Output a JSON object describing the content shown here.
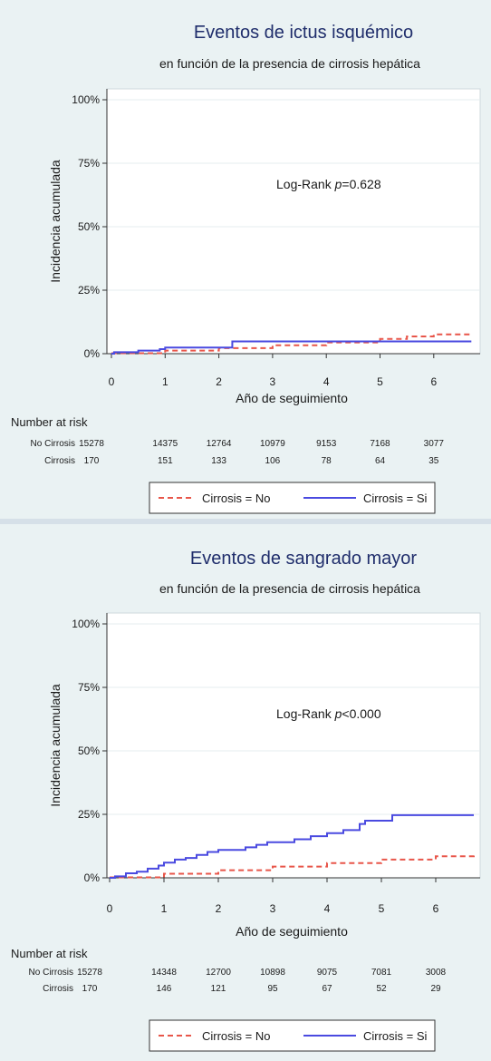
{
  "chart_data": [
    {
      "type": "line",
      "title": "Eventos de ictus isquémico",
      "subtitle": "en función de la presencia de cirrosis hepática",
      "xlabel": "Año de seguimiento",
      "ylabel": "Incidencia acumulada",
      "xlim": [
        0,
        6.8
      ],
      "ylim": [
        0,
        1
      ],
      "x_ticks": [
        "0",
        "1",
        "2",
        "3",
        "4",
        "5",
        "6"
      ],
      "y_ticks": [
        "0%",
        "25%",
        "50%",
        "75%",
        "100%"
      ],
      "grid": true,
      "annotation": {
        "prefix": "Log-Rank ",
        "p": "p",
        "rest": "=0.628"
      },
      "series": [
        {
          "name": "Cirrosis = No",
          "color": "#e8564a",
          "style": "dashed",
          "x": [
            0,
            1,
            2,
            3,
            4,
            5,
            5.5,
            6,
            6.7
          ],
          "y": [
            0.002,
            0.012,
            0.022,
            0.033,
            0.044,
            0.058,
            0.068,
            0.076,
            0.082
          ]
        },
        {
          "name": "Cirrosis = Si",
          "color": "#4a4ae0",
          "style": "solid",
          "x": [
            0,
            0.05,
            0.5,
            0.9,
            1.0,
            1.6,
            2.25,
            2.25,
            6.7
          ],
          "y": [
            0,
            0.006,
            0.012,
            0.018,
            0.024,
            0.024,
            0.024,
            0.048,
            0.048
          ]
        }
      ],
      "risk_table": {
        "title": "Number at risk",
        "rows": [
          {
            "label": "No Cirrosis",
            "values": [
              "15278",
              "14375",
              "12764",
              "10979",
              "9153",
              "7168",
              "3077"
            ]
          },
          {
            "label": "Cirrosis",
            "values": [
              "170",
              "151",
              "133",
              "106",
              "78",
              "64",
              "35"
            ]
          }
        ]
      },
      "legend": {
        "position": "bottom",
        "items": [
          "Cirrosis = No",
          "Cirrosis = Si"
        ]
      }
    },
    {
      "type": "line",
      "title": "Eventos de sangrado mayor",
      "subtitle": "en función de la presencia de cirrosis hepática",
      "xlabel": "Año de seguimiento",
      "ylabel": "Incidencia acumulada",
      "xlim": [
        0,
        6.8
      ],
      "ylim": [
        0,
        1
      ],
      "x_ticks": [
        "0",
        "1",
        "2",
        "3",
        "4",
        "5",
        "6"
      ],
      "y_ticks": [
        "0%",
        "25%",
        "50%",
        "75%",
        "100%"
      ],
      "grid": true,
      "annotation": {
        "prefix": "Log-Rank ",
        "p": "p",
        "rest": "<0.000"
      },
      "series": [
        {
          "name": "Cirrosis = No",
          "color": "#e8564a",
          "style": "dashed",
          "x": [
            0,
            1,
            2,
            3,
            4,
            5,
            6,
            6.7
          ],
          "y": [
            0.002,
            0.016,
            0.03,
            0.044,
            0.058,
            0.072,
            0.085,
            0.095
          ]
        },
        {
          "name": "Cirrosis = Si",
          "color": "#4a4ae0",
          "style": "solid",
          "x": [
            0,
            0.1,
            0.3,
            0.5,
            0.7,
            0.9,
            1.0,
            1.2,
            1.4,
            1.6,
            1.8,
            2.0,
            2.3,
            2.5,
            2.7,
            2.9,
            3.1,
            3.4,
            3.7,
            4.0,
            4.3,
            4.6,
            4.7,
            5.2,
            6.7
          ],
          "y": [
            0,
            0.006,
            0.018,
            0.024,
            0.036,
            0.048,
            0.06,
            0.072,
            0.078,
            0.09,
            0.102,
            0.11,
            0.11,
            0.12,
            0.13,
            0.14,
            0.14,
            0.152,
            0.164,
            0.176,
            0.188,
            0.212,
            0.225,
            0.247,
            0.247
          ]
        }
      ],
      "risk_table": {
        "title": "Number at risk",
        "rows": [
          {
            "label": "No Cirrosis",
            "values": [
              "15278",
              "14348",
              "12700",
              "10898",
              "9075",
              "7081",
              "3008"
            ]
          },
          {
            "label": "Cirrosis",
            "values": [
              "170",
              "146",
              "121",
              "95",
              "67",
              "52",
              "29"
            ]
          }
        ]
      },
      "legend": {
        "position": "bottom",
        "items": [
          "Cirrosis = No",
          "Cirrosis = Si"
        ]
      }
    }
  ]
}
